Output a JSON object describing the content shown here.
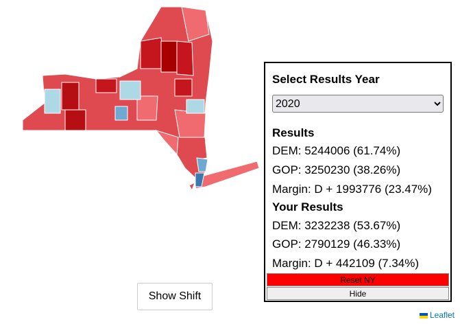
{
  "panel": {
    "title": "Select Results Year",
    "year_select": "2020",
    "results": {
      "heading": "Results",
      "lines": [
        "DEM: 5244006 (61.74%)",
        "GOP: 3250230 (38.26%)",
        "Margin: D + 1993776 (23.47%)"
      ]
    },
    "your_results": {
      "heading": "Your Results",
      "lines": [
        "DEM: 3232238 (53.67%)",
        "GOP: 2790129 (46.33%)",
        "Margin: D + 442109 (7.34%)"
      ]
    },
    "buttons": [
      "Reset NY",
      "Hide"
    ]
  },
  "show_shift_button": "Show Shift",
  "attribution": "Leaflet"
}
